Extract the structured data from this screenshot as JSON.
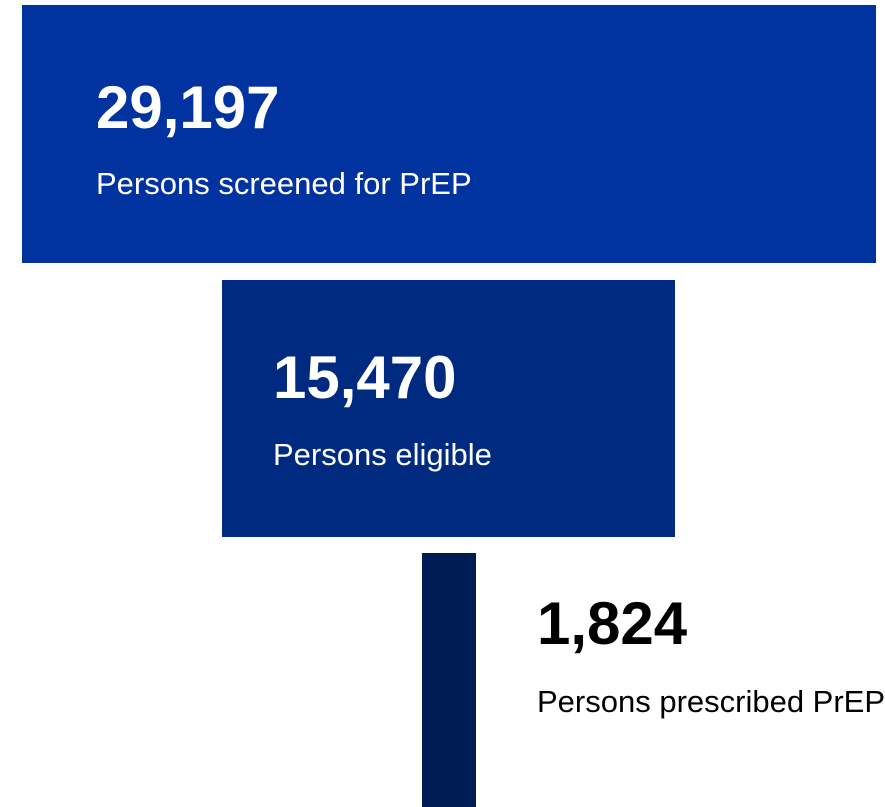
{
  "stages": [
    {
      "value": "29,197",
      "label": "Persons screened for PrEP"
    },
    {
      "value": "15,470",
      "label": "Persons eligible"
    },
    {
      "value": "1,824",
      "label": "Persons prescribed PrEP"
    }
  ]
}
